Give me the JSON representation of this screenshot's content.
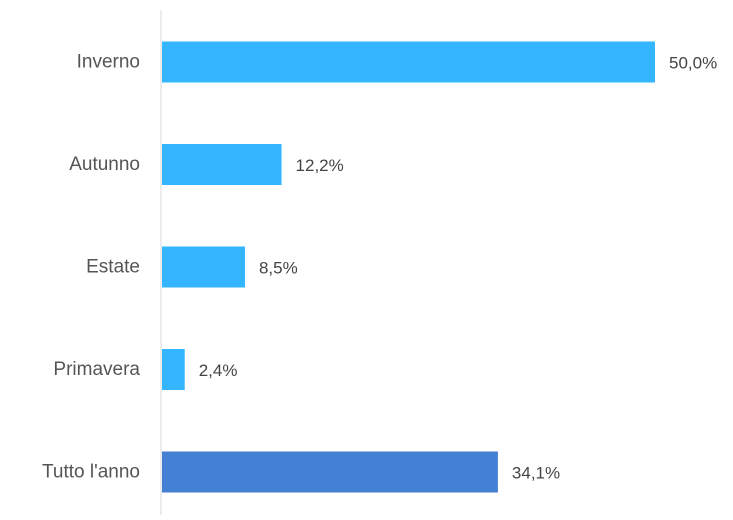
{
  "chart_data": {
    "type": "bar",
    "orientation": "horizontal",
    "title": "",
    "xlabel": "",
    "ylabel": "",
    "categories": [
      "Inverno",
      "Autunno",
      "Estate",
      "Primavera",
      "Tutto l'anno"
    ],
    "values": [
      50.0,
      12.2,
      8.5,
      2.4,
      34.1
    ],
    "value_labels": [
      "50,0%",
      "12,2%",
      "8,5%",
      "2,4%",
      "34,1%"
    ],
    "xlim": [
      0,
      50
    ],
    "grid": false,
    "legend": "none",
    "colors": {
      "default": "#33B5FF",
      "highlight": "#4481D5",
      "axis": "#D9D9D9"
    },
    "highlight_categories": [
      "Tutto l'anno"
    ]
  }
}
